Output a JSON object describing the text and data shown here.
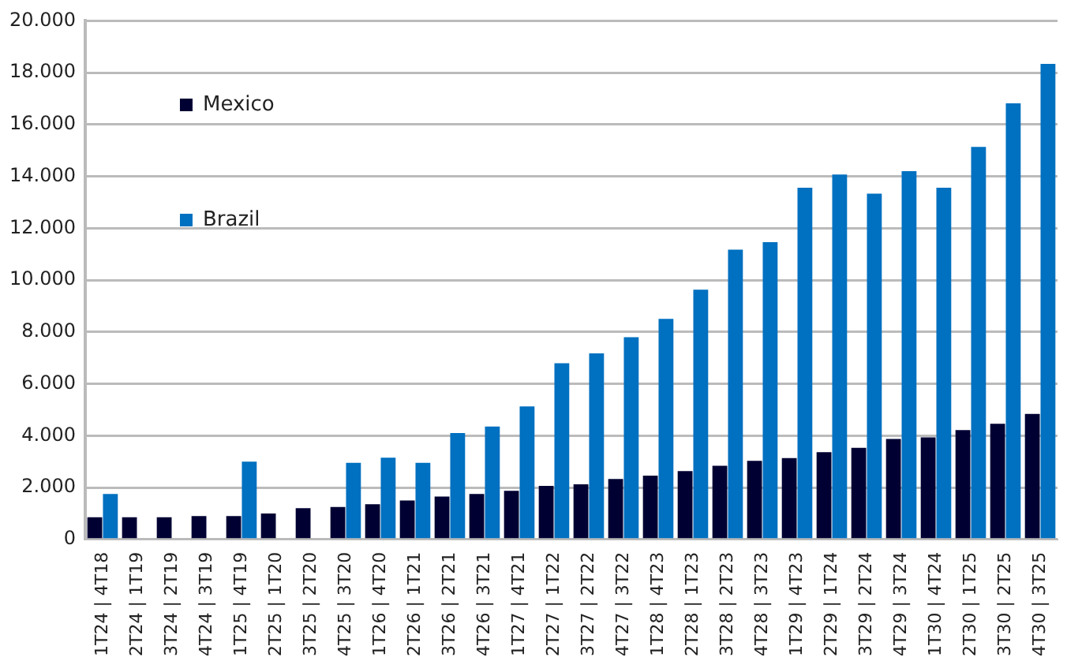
{
  "chart_data": {
    "type": "bar",
    "categories": [
      "1T24 | 4T18",
      "2T24 | 1T19",
      "3T24 | 2T19",
      "4T24 | 3T19",
      "1T25 | 4T19",
      "2T25 | 1T20",
      "3T25 | 2T20",
      "4T25 | 3T20",
      "1T26 | 4T20",
      "2T26 | 1T21",
      "3T26 | 2T21",
      "4T26 | 3T21",
      "1T27 | 4T21",
      "2T27 | 1T22",
      "3T27 | 2T22",
      "4T27 | 3T22",
      "1T28 | 4T23",
      "2T28 | 1T23",
      "3T28 | 2T23",
      "4T28 | 3T23",
      "1T29 | 4T23",
      "2T29 | 1T24",
      "3T29 | 2T24",
      "4T29 | 3T24",
      "1T30 | 4T24",
      "2T30 | 1T25",
      "3T30 | 2T25",
      "4T30 | 3T25"
    ],
    "series": [
      {
        "name": "Mexico",
        "color": "#000033",
        "values": [
          850,
          850,
          850,
          900,
          900,
          1000,
          1200,
          1250,
          1350,
          1500,
          1650,
          1750,
          1870,
          2060,
          2120,
          2330,
          2460,
          2630,
          2840,
          3030,
          3130,
          3360,
          3530,
          3870,
          3930,
          4210,
          4460,
          4840
        ]
      },
      {
        "name": "Brazil",
        "color": "#0070c0",
        "values": [
          1750,
          null,
          null,
          null,
          3000,
          null,
          null,
          2950,
          3150,
          2950,
          4100,
          4350,
          5130,
          6790,
          7170,
          7800,
          8500,
          9630,
          11170,
          11460,
          13560,
          14070,
          13330,
          14200,
          13560,
          15140,
          16820,
          18340
        ]
      }
    ],
    "ylim": [
      0,
      20000
    ],
    "yticks": [
      {
        "value": 0,
        "label": "0"
      },
      {
        "value": 2000,
        "label": "2.000"
      },
      {
        "value": 4000,
        "label": "4.000"
      },
      {
        "value": 6000,
        "label": "6.000"
      },
      {
        "value": 8000,
        "label": "8.000"
      },
      {
        "value": 10000,
        "label": "10.000"
      },
      {
        "value": 12000,
        "label": "12.000"
      },
      {
        "value": 14000,
        "label": "14.000"
      },
      {
        "value": 16000,
        "label": "16.000"
      },
      {
        "value": 18000,
        "label": "18.000"
      },
      {
        "value": 20000,
        "label": "20.000"
      }
    ],
    "grid": "y",
    "legend": "top left"
  }
}
